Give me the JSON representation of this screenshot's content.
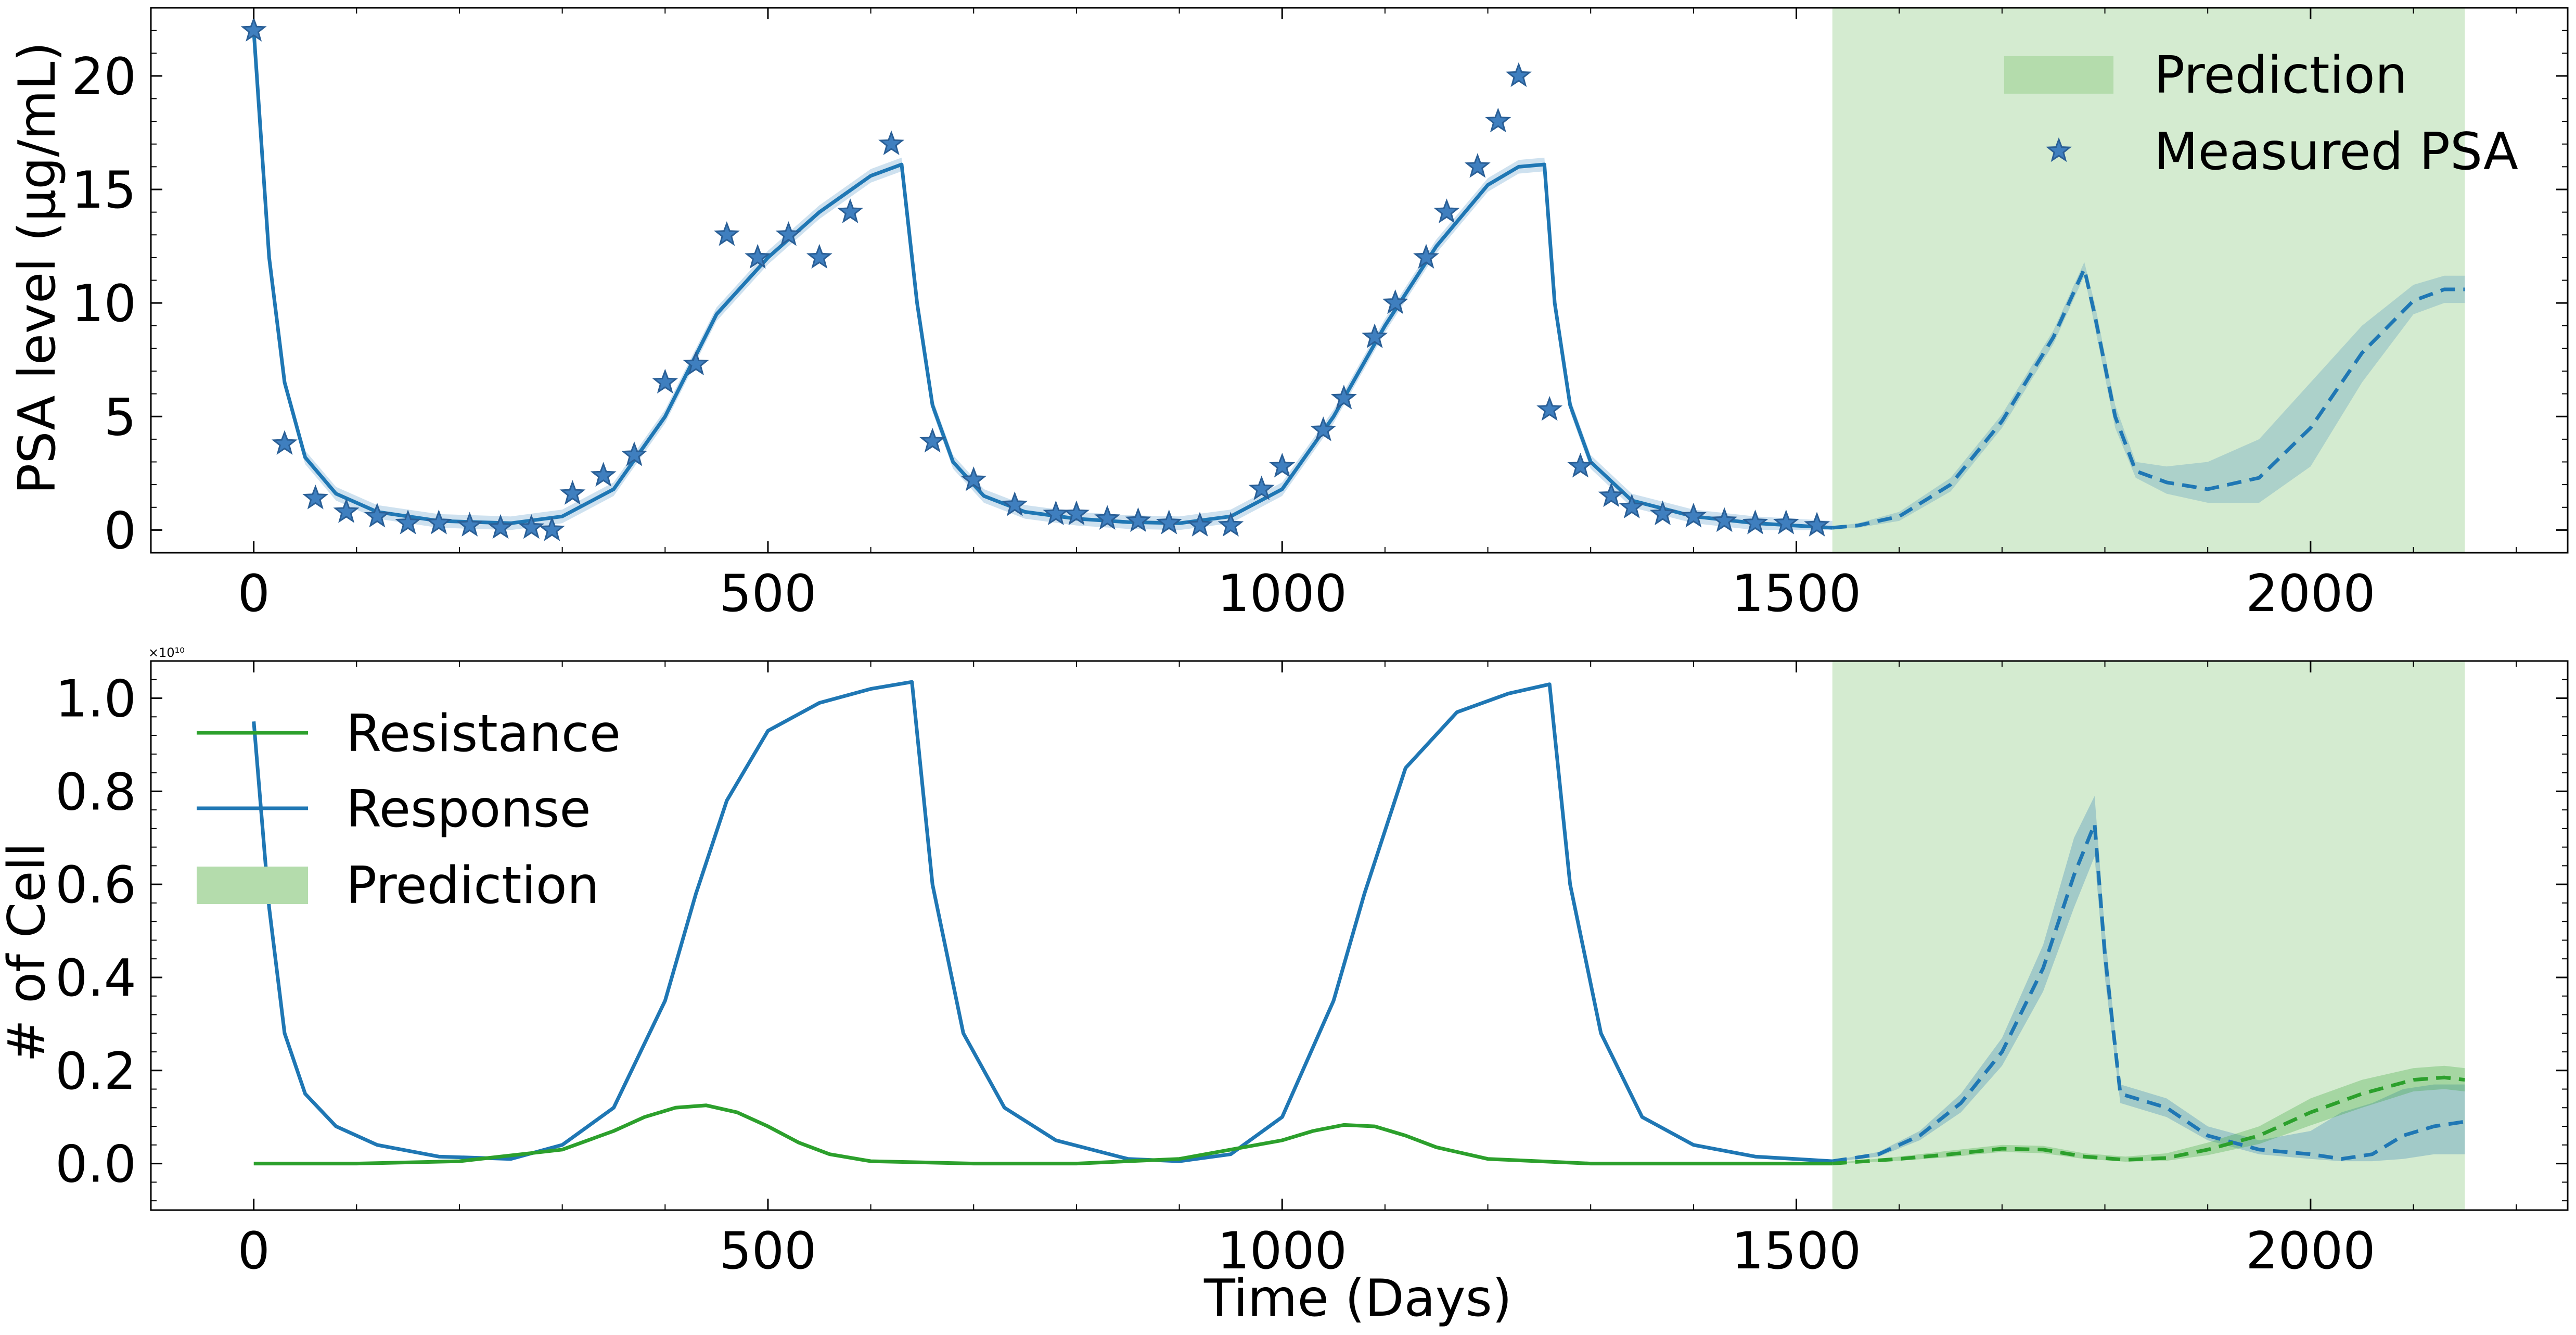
{
  "chart_data": [
    {
      "type": "line",
      "xlabel": "",
      "ylabel": "PSA level (μg/mL)",
      "xlim": [
        -100,
        2250
      ],
      "ylim": [
        -1,
        23
      ],
      "xticks": [
        0,
        500,
        1000,
        1500,
        2000
      ],
      "yticks": [
        0,
        5,
        10,
        15,
        20
      ],
      "xtick_labels": [
        "0",
        "500",
        "1000",
        "1500",
        "2000"
      ],
      "ytick_labels": [
        "0",
        "5",
        "10",
        "15",
        "20"
      ],
      "legend_position": "top-right",
      "legend": [
        {
          "label": "Prediction",
          "kind": "patch",
          "color": "#b9e0b2"
        },
        {
          "label": "Measured PSA",
          "kind": "star",
          "color": "#3f7fbf"
        }
      ],
      "prediction_region": [
        1535,
        2150
      ],
      "fit_line": {
        "color": "#1f77b4",
        "x": [
          0,
          15,
          30,
          50,
          80,
          120,
          180,
          250,
          300,
          350,
          400,
          450,
          500,
          550,
          600,
          630,
          645,
          660,
          680,
          710,
          750,
          800,
          850,
          900,
          950,
          1000,
          1050,
          1100,
          1150,
          1200,
          1230,
          1255,
          1265,
          1280,
          1300,
          1340,
          1400,
          1460,
          1535
        ],
        "y": [
          22,
          12,
          6.5,
          3.2,
          1.6,
          0.8,
          0.4,
          0.3,
          0.6,
          1.8,
          5,
          9.5,
          12,
          14,
          15.6,
          16.1,
          10,
          5.5,
          3,
          1.5,
          0.8,
          0.5,
          0.35,
          0.3,
          0.6,
          1.8,
          5,
          9,
          12.5,
          15.2,
          16,
          16.1,
          10,
          5.5,
          3,
          1.3,
          0.6,
          0.3,
          0.1
        ],
        "band": 0.3
      },
      "prediction_line": {
        "color": "#1f77b4",
        "style": "dashed",
        "x": [
          1535,
          1560,
          1600,
          1650,
          1700,
          1750,
          1780,
          1790,
          1810,
          1830,
          1860,
          1900,
          1950,
          2000,
          2050,
          2100,
          2130,
          2150
        ],
        "y": [
          0.1,
          0.2,
          0.6,
          2,
          4.8,
          8.5,
          11.5,
          9.5,
          5,
          2.6,
          2.1,
          1.8,
          2.3,
          4.5,
          7.8,
          10.1,
          10.6,
          10.6
        ],
        "band_upper": [
          0.15,
          0.3,
          0.8,
          2.3,
          5.1,
          8.8,
          11.8,
          10,
          5.5,
          3,
          2.8,
          3,
          4,
          6.5,
          9,
          10.8,
          11.2,
          11.2
        ],
        "band_lower": [
          0.05,
          0.1,
          0.4,
          1.7,
          4.5,
          8.2,
          11.2,
          9,
          4.5,
          2.3,
          1.6,
          1.2,
          1.2,
          2.8,
          6.5,
          9.5,
          10,
          10
        ]
      },
      "measured": {
        "x": [
          0,
          30,
          60,
          90,
          120,
          150,
          180,
          210,
          240,
          270,
          290,
          310,
          340,
          370,
          400,
          430,
          460,
          490,
          520,
          550,
          580,
          620,
          660,
          700,
          740,
          780,
          800,
          830,
          860,
          890,
          920,
          950,
          980,
          1000,
          1040,
          1060,
          1090,
          1110,
          1140,
          1160,
          1190,
          1210,
          1230,
          1260,
          1290,
          1320,
          1340,
          1370,
          1400,
          1430,
          1460,
          1490,
          1520
        ],
        "y": [
          22,
          3.8,
          1.4,
          0.8,
          0.6,
          0.3,
          0.3,
          0.2,
          0.1,
          0.1,
          0.0,
          1.6,
          2.4,
          3.3,
          6.5,
          7.3,
          13,
          12,
          13,
          12,
          14,
          17,
          3.9,
          2.2,
          1.1,
          0.7,
          0.7,
          0.5,
          0.4,
          0.3,
          0.2,
          0.2,
          1.8,
          2.8,
          4.4,
          5.8,
          8.5,
          10,
          12,
          14,
          16,
          18,
          20,
          5.3,
          2.8,
          1.5,
          1.0,
          0.7,
          0.6,
          0.4,
          0.3,
          0.3,
          0.2
        ]
      }
    },
    {
      "type": "line",
      "xlabel": "Time (Days)",
      "ylabel": "# of Cell",
      "offset_label": "×10¹⁰",
      "xlim": [
        -100,
        2250
      ],
      "ylim": [
        -0.1,
        1.08
      ],
      "xticks": [
        0,
        500,
        1000,
        1500,
        2000
      ],
      "yticks": [
        0.0,
        0.2,
        0.4,
        0.6,
        0.8,
        1.0
      ],
      "xtick_labels": [
        "0",
        "500",
        "1000",
        "1500",
        "2000"
      ],
      "ytick_labels": [
        "0.0",
        "0.2",
        "0.4",
        "0.6",
        "0.8",
        "1.0"
      ],
      "legend_position": "top-left",
      "legend": [
        {
          "label": "Resistance",
          "kind": "line",
          "color": "#2ca02c"
        },
        {
          "label": "Response",
          "kind": "line",
          "color": "#1f77b4"
        },
        {
          "label": "Prediction",
          "kind": "patch",
          "color": "#b9e0b2"
        }
      ],
      "prediction_region": [
        1535,
        2150
      ],
      "series": [
        {
          "name": "Response",
          "color": "#1f77b4",
          "x": [
            0,
            15,
            30,
            50,
            80,
            120,
            180,
            250,
            300,
            350,
            400,
            430,
            460,
            500,
            550,
            600,
            640,
            660,
            690,
            730,
            780,
            850,
            900,
            950,
            1000,
            1050,
            1080,
            1120,
            1170,
            1220,
            1260,
            1280,
            1310,
            1350,
            1400,
            1460,
            1535
          ],
          "y": [
            0.95,
            0.55,
            0.28,
            0.15,
            0.08,
            0.04,
            0.015,
            0.01,
            0.04,
            0.12,
            0.35,
            0.58,
            0.78,
            0.93,
            0.99,
            1.02,
            1.035,
            0.6,
            0.28,
            0.12,
            0.05,
            0.01,
            0.005,
            0.02,
            0.1,
            0.35,
            0.58,
            0.85,
            0.97,
            1.01,
            1.03,
            0.6,
            0.28,
            0.1,
            0.04,
            0.015,
            0.005
          ]
        },
        {
          "name": "Resistance",
          "color": "#2ca02c",
          "x": [
            0,
            100,
            200,
            300,
            350,
            380,
            410,
            440,
            470,
            500,
            530,
            560,
            600,
            700,
            800,
            900,
            950,
            1000,
            1030,
            1060,
            1090,
            1120,
            1150,
            1200,
            1300,
            1400,
            1535
          ],
          "y": [
            0.0,
            0.0,
            0.005,
            0.03,
            0.07,
            0.1,
            0.12,
            0.125,
            0.11,
            0.08,
            0.045,
            0.02,
            0.005,
            0.0,
            0.0,
            0.01,
            0.03,
            0.05,
            0.07,
            0.083,
            0.08,
            0.06,
            0.035,
            0.01,
            0.0,
            0.0,
            0.0
          ]
        }
      ],
      "prediction_series": [
        {
          "name": "Response",
          "color": "#1f77b4",
          "x": [
            1535,
            1580,
            1620,
            1660,
            1700,
            1740,
            1770,
            1790,
            1800,
            1815,
            1830,
            1860,
            1900,
            1950,
            2000,
            2030,
            2060,
            2090,
            2120,
            2150
          ],
          "y": [
            0.005,
            0.02,
            0.06,
            0.13,
            0.24,
            0.42,
            0.62,
            0.73,
            0.45,
            0.15,
            0.14,
            0.12,
            0.06,
            0.03,
            0.02,
            0.01,
            0.02,
            0.06,
            0.08,
            0.09
          ],
          "band_upper": [
            0.006,
            0.025,
            0.07,
            0.15,
            0.27,
            0.47,
            0.7,
            0.79,
            0.5,
            0.17,
            0.16,
            0.14,
            0.08,
            0.05,
            0.07,
            0.11,
            0.13,
            0.16,
            0.17,
            0.17
          ],
          "band_lower": [
            0.004,
            0.015,
            0.05,
            0.11,
            0.21,
            0.37,
            0.55,
            0.66,
            0.4,
            0.13,
            0.12,
            0.1,
            0.05,
            0.02,
            0.01,
            0.005,
            0.005,
            0.01,
            0.02,
            0.02
          ]
        },
        {
          "name": "Resistance",
          "color": "#2ca02c",
          "x": [
            1535,
            1600,
            1650,
            1700,
            1740,
            1780,
            1820,
            1860,
            1900,
            1950,
            2000,
            2050,
            2100,
            2130,
            2150
          ],
          "y": [
            0.0,
            0.01,
            0.02,
            0.032,
            0.03,
            0.015,
            0.008,
            0.012,
            0.03,
            0.06,
            0.11,
            0.15,
            0.18,
            0.185,
            0.18
          ],
          "band_upper": [
            0.001,
            0.015,
            0.028,
            0.04,
            0.038,
            0.022,
            0.015,
            0.022,
            0.045,
            0.08,
            0.14,
            0.18,
            0.205,
            0.21,
            0.205
          ],
          "band_lower": [
            0.0,
            0.006,
            0.014,
            0.025,
            0.022,
            0.01,
            0.004,
            0.006,
            0.018,
            0.042,
            0.082,
            0.12,
            0.155,
            0.16,
            0.155
          ]
        }
      ]
    }
  ]
}
